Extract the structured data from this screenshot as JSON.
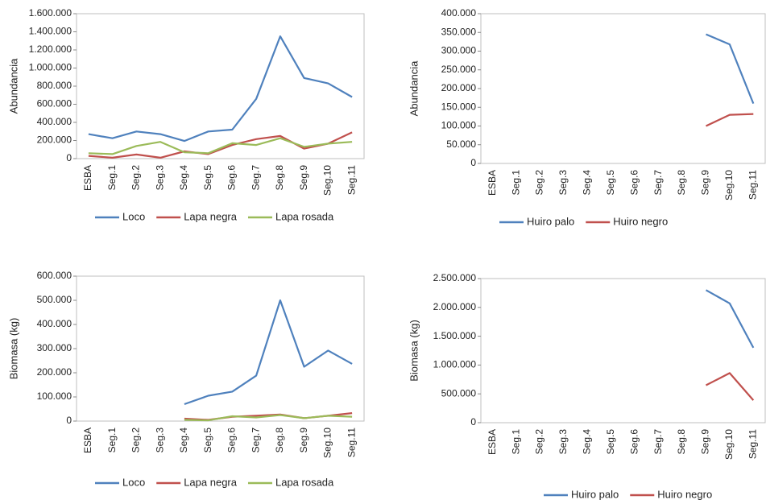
{
  "chart_data": [
    {
      "type": "line",
      "ylabel": "Abundancia",
      "categories": [
        "ESBA",
        "Seg.1",
        "Seg.2",
        "Seg.3",
        "Seg.4",
        "Seg.5",
        "Seg.6",
        "Seg.7",
        "Seg.8",
        "Seg.9",
        "Seg.10",
        "Seg.11"
      ],
      "ylim": [
        0,
        1600000
      ],
      "yticks": [
        0,
        {
          "value": 200000,
          "label": "200.000"
        },
        {
          "value": 400000,
          "label": "400.000"
        },
        {
          "value": 600000,
          "label": "600.000"
        },
        {
          "value": 800000,
          "label": "800.000"
        },
        {
          "value": 1000000,
          "label": "1.000.000"
        },
        {
          "value": 1200000,
          "label": "1.200.000"
        },
        {
          "value": 1400000,
          "label": "1.400.000"
        },
        {
          "value": 1600000,
          "label": "1.600.000"
        }
      ],
      "series": [
        {
          "name": "Loco",
          "color": "#4f81bd",
          "values": [
            270000,
            225000,
            300000,
            270000,
            195000,
            300000,
            320000,
            660000,
            1350000,
            890000,
            830000,
            680000
          ]
        },
        {
          "name": "Lapa negra",
          "color": "#c0504d",
          "values": [
            30000,
            10000,
            45000,
            10000,
            80000,
            50000,
            150000,
            215000,
            250000,
            110000,
            165000,
            290000
          ]
        },
        {
          "name": "Lapa rosada",
          "color": "#9bbb59",
          "values": [
            60000,
            50000,
            140000,
            185000,
            70000,
            60000,
            170000,
            150000,
            225000,
            130000,
            165000,
            185000
          ]
        }
      ]
    },
    {
      "type": "line",
      "ylabel": "Abundancia",
      "categories": [
        "ESBA",
        "Seg.1",
        "Seg.2",
        "Seg.3",
        "Seg.4",
        "Seg.5",
        "Seg.6",
        "Seg.7",
        "Seg.8",
        "Seg.9",
        "Seg.10",
        "Seg.11"
      ],
      "ylim": [
        0,
        400000
      ],
      "yticks": [
        0,
        {
          "value": 50000,
          "label": "50.000"
        },
        {
          "value": 100000,
          "label": "100.000"
        },
        {
          "value": 150000,
          "label": "150.000"
        },
        {
          "value": 200000,
          "label": "200.000"
        },
        {
          "value": 250000,
          "label": "250.000"
        },
        {
          "value": 300000,
          "label": "300.000"
        },
        {
          "value": 350000,
          "label": "350.000"
        },
        {
          "value": 400000,
          "label": "400.000"
        }
      ],
      "series": [
        {
          "name": "Huiro palo",
          "color": "#4f81bd",
          "values": [
            null,
            null,
            null,
            null,
            null,
            null,
            null,
            null,
            null,
            345000,
            318000,
            160000
          ]
        },
        {
          "name": "Huiro negro",
          "color": "#c0504d",
          "values": [
            null,
            null,
            null,
            null,
            null,
            null,
            null,
            null,
            null,
            100000,
            130000,
            132000
          ]
        }
      ]
    },
    {
      "type": "line",
      "ylabel": "Biomasa (kg)",
      "categories": [
        "ESBA",
        "Seg.1",
        "Seg.2",
        "Seg.3",
        "Seg.4",
        "Seg.5",
        "Seg.6",
        "Seg.7",
        "Seg.8",
        "Seg.9",
        "Seg.10",
        "Seg.11"
      ],
      "ylim": [
        0,
        600000
      ],
      "yticks": [
        0,
        {
          "value": 100000,
          "label": "100.000"
        },
        {
          "value": 200000,
          "label": "200.000"
        },
        {
          "value": 300000,
          "label": "300.000"
        },
        {
          "value": 400000,
          "label": "400.000"
        },
        {
          "value": 500000,
          "label": "500.000"
        },
        {
          "value": 600000,
          "label": "600.000"
        }
      ],
      "series": [
        {
          "name": "Loco",
          "color": "#4f81bd",
          "values": [
            null,
            null,
            null,
            null,
            70000,
            105000,
            122000,
            188000,
            500000,
            225000,
            292000,
            237000
          ]
        },
        {
          "name": "Lapa negra",
          "color": "#c0504d",
          "values": [
            null,
            null,
            null,
            null,
            10000,
            5000,
            18000,
            22000,
            27000,
            12000,
            22000,
            33000
          ]
        },
        {
          "name": "Lapa rosada",
          "color": "#9bbb59",
          "values": [
            null,
            null,
            null,
            null,
            5000,
            3000,
            20000,
            15000,
            25000,
            12000,
            22000,
            18000
          ]
        }
      ]
    },
    {
      "type": "line",
      "ylabel": "Biomasa (kg)",
      "categories": [
        "ESBA",
        "Seg.1",
        "Seg.2",
        "Seg.3",
        "Seg.4",
        "Seg.5",
        "Seg.6",
        "Seg.7",
        "Seg.8",
        "Seg.9",
        "Seg.10",
        "Seg.11"
      ],
      "ylim": [
        0,
        2500000
      ],
      "yticks": [
        0,
        {
          "value": 500000,
          "label": "500.000"
        },
        {
          "value": 1000000,
          "label": "1.000.000"
        },
        {
          "value": 1500000,
          "label": "1.500.000"
        },
        {
          "value": 2000000,
          "label": "2.000.000"
        },
        {
          "value": 2500000,
          "label": "2.500.000"
        }
      ],
      "series": [
        {
          "name": "Huiro palo",
          "color": "#4f81bd",
          "values": [
            null,
            null,
            null,
            null,
            null,
            null,
            null,
            null,
            null,
            2300000,
            2070000,
            1300000
          ]
        },
        {
          "name": "Huiro negro",
          "color": "#c0504d",
          "values": [
            null,
            null,
            null,
            null,
            null,
            null,
            null,
            null,
            null,
            650000,
            860000,
            390000
          ]
        }
      ]
    }
  ]
}
